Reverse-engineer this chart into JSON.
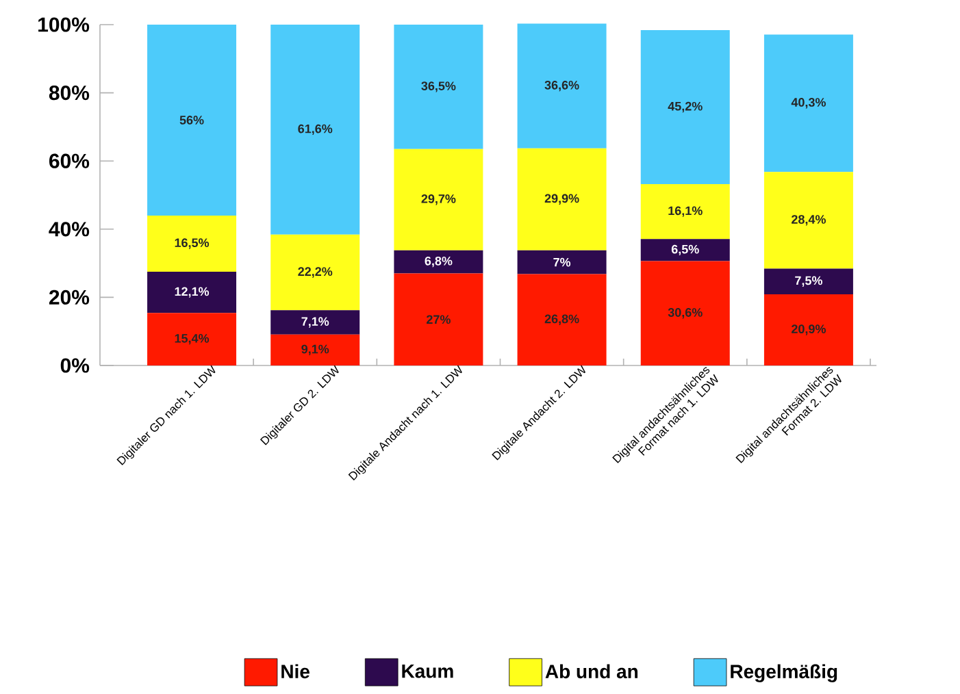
{
  "chart_data": {
    "type": "bar",
    "stacked": true,
    "categories": [
      "Digitaler GD nach 1. LDW",
      "Digitaler GD 2. LDW",
      "Digitale Andacht nach 1. LDW",
      "Digitale Andacht 2. LDW",
      "Digital andachtsähnliches Format nach 1. LDW",
      "Digital andachtsähnliches Format 2. LDW"
    ],
    "series": [
      {
        "name": "Nie",
        "color": "#ff1a00",
        "values": [
          15.4,
          9.1,
          27,
          26.8,
          30.6,
          20.9
        ],
        "value_labels": [
          "15,4%",
          "9,1%",
          "27%",
          "26,8%",
          "30,6%",
          "20,9%"
        ]
      },
      {
        "name": "Kaum",
        "color": "#2d0a4e",
        "values": [
          12.1,
          7.1,
          6.8,
          7,
          6.5,
          7.5
        ],
        "value_labels": [
          "12,1%",
          "7,1%",
          "6,8%",
          "7%",
          "6,5%",
          "7,5%"
        ]
      },
      {
        "name": "Ab und an",
        "color": "#ffff1a",
        "values": [
          16.5,
          22.2,
          29.7,
          29.9,
          16.1,
          28.4
        ],
        "value_labels": [
          "16,5%",
          "22,2%",
          "29,7%",
          "29,9%",
          "16,1%",
          "28,4%"
        ]
      },
      {
        "name": "Regelmäßig",
        "color": "#4dcbfa",
        "values": [
          56,
          61.6,
          36.5,
          36.6,
          45.2,
          40.3
        ],
        "value_labels": [
          "56%",
          "61,6%",
          "36,5%",
          "36,6%",
          "45,2%",
          "40,3%"
        ]
      }
    ],
    "ylim": [
      0,
      100
    ],
    "yticks": [
      {
        "value": 0,
        "label": "0%"
      },
      {
        "value": 20,
        "label": "20%"
      },
      {
        "value": 40,
        "label": "40%"
      },
      {
        "value": 60,
        "label": "60%"
      },
      {
        "value": 80,
        "label": "80%"
      },
      {
        "value": 100,
        "label": "100%"
      }
    ],
    "grid": false,
    "legend": "bottom"
  }
}
